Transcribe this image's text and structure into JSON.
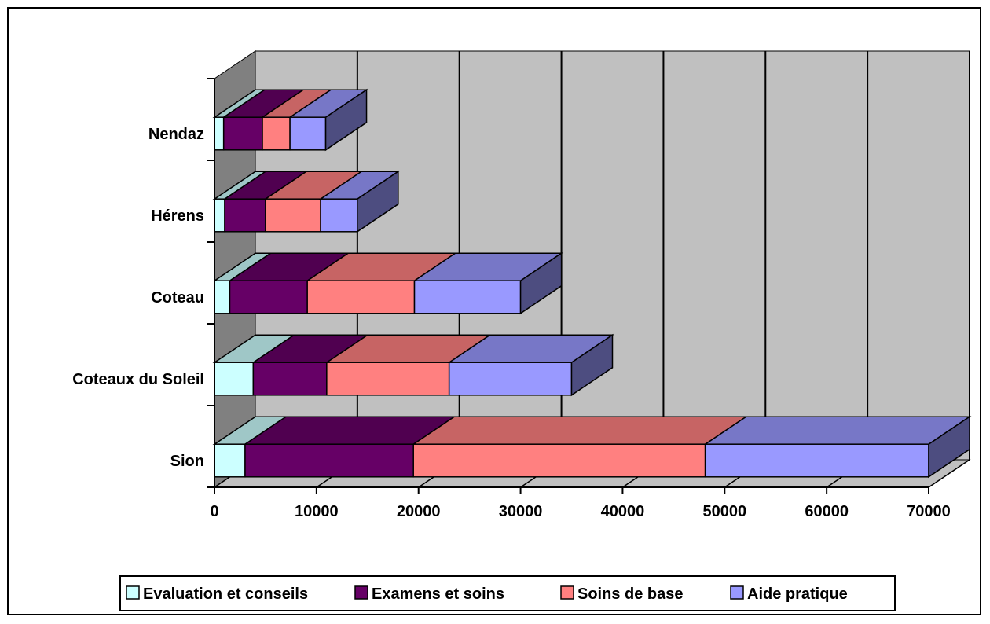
{
  "chart_data": {
    "type": "bar",
    "orientation": "horizontal",
    "stacked": true,
    "three_d": true,
    "categories": [
      "Sion",
      "Coteaux du Soleil",
      "Coteau",
      "Hérens",
      "Nendaz"
    ],
    "series": [
      {
        "name": "Evaluation et conseils",
        "values": [
          3000,
          3800,
          1500,
          1000,
          900
        ],
        "color": "#CCFFFF"
      },
      {
        "name": "Examens et soins",
        "values": [
          16500,
          7200,
          7600,
          4000,
          3800
        ],
        "color": "#660066"
      },
      {
        "name": "Soins de base",
        "values": [
          28600,
          12000,
          10500,
          5400,
          2700
        ],
        "color": "#FF8080"
      },
      {
        "name": "Aide pratique",
        "values": [
          21900,
          12000,
          10400,
          3600,
          3500
        ],
        "color": "#9999FF"
      }
    ],
    "xlim": [
      0,
      70000
    ],
    "xticks": [
      "0",
      "10000",
      "20000",
      "30000",
      "40000",
      "50000",
      "60000",
      "70000"
    ],
    "grid": true,
    "wall_color": "#C0C0C0",
    "legend_position": "bottom"
  }
}
